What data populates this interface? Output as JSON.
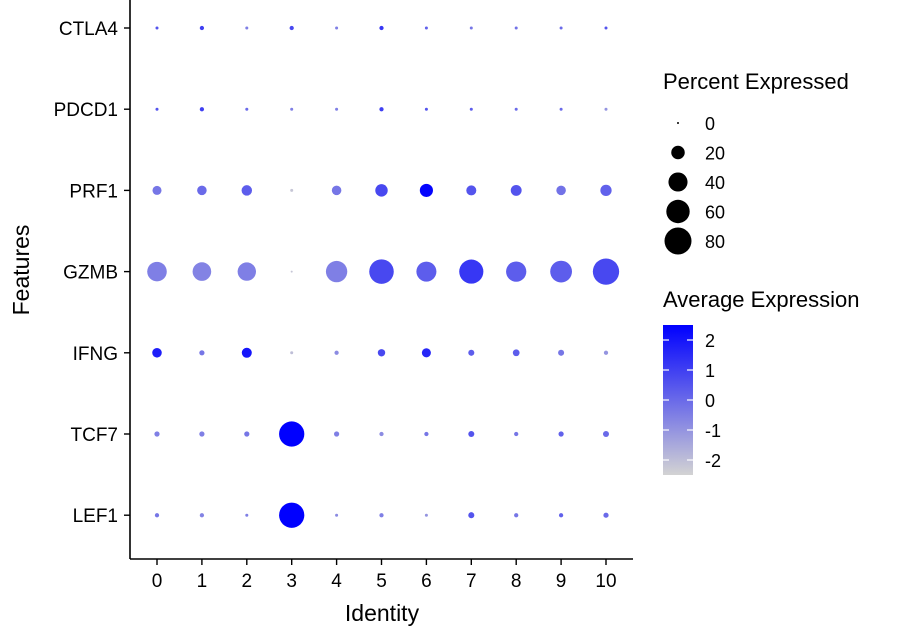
{
  "chart_data": {
    "type": "dot",
    "xlabel": "Identity",
    "ylabel": "Features",
    "categories": [
      "0",
      "1",
      "2",
      "3",
      "4",
      "5",
      "6",
      "7",
      "8",
      "9",
      "10"
    ],
    "features": [
      "CTLA4",
      "PDCD1",
      "PRF1",
      "GZMB",
      "IFNG",
      "TCF7",
      "LEF1"
    ],
    "size_legend": {
      "title": "Percent Expressed",
      "values": [
        0,
        20,
        40,
        60,
        80
      ]
    },
    "color_legend": {
      "title": "Average Expression",
      "ticks": [
        2,
        1,
        0,
        -1,
        -2
      ],
      "range": [
        -2.5,
        2.5
      ],
      "low_color": "#d3d3d3",
      "high_color": "#0000ff"
    },
    "data": [
      {
        "feature": "CTLA4",
        "pct": [
          1,
          2,
          1,
          2,
          1,
          2,
          1,
          1,
          1,
          1,
          1
        ],
        "avg": [
          0.5,
          1.0,
          -0.5,
          0.8,
          -0.5,
          1.2,
          0.2,
          -0.3,
          -0.2,
          0.0,
          0.5
        ]
      },
      {
        "feature": "PDCD1",
        "pct": [
          1,
          2,
          1,
          1,
          1,
          2,
          1,
          1,
          1,
          1,
          1
        ],
        "avg": [
          0.5,
          1.0,
          0.0,
          -0.5,
          -0.5,
          1.0,
          0.5,
          0.3,
          0.0,
          0.0,
          -1.0
        ]
      },
      {
        "feature": "PRF1",
        "pct": [
          9,
          10,
          12,
          1,
          10,
          17,
          19,
          11,
          13,
          10,
          14
        ],
        "avg": [
          -0.3,
          0.0,
          0.3,
          -2.2,
          -0.3,
          0.8,
          2.4,
          0.5,
          0.5,
          -0.2,
          0.2
        ]
      },
      {
        "feature": "GZMB",
        "pct": [
          42,
          38,
          37,
          0,
          50,
          66,
          44,
          64,
          45,
          52,
          76
        ],
        "avg": [
          -0.5,
          -0.6,
          -0.5,
          -2.2,
          -0.5,
          0.8,
          0.3,
          1.2,
          0.3,
          0.3,
          0.8
        ]
      },
      {
        "feature": "IFNG",
        "pct": [
          10,
          3,
          11,
          1,
          2,
          6,
          9,
          4,
          5,
          4,
          2
        ],
        "avg": [
          1.8,
          -0.3,
          2.0,
          -2.0,
          -0.8,
          0.8,
          1.6,
          0.3,
          0.3,
          -0.3,
          -1.0
        ]
      },
      {
        "feature": "TCF7",
        "pct": [
          3,
          3,
          3,
          70,
          3,
          2,
          2,
          4,
          2,
          3,
          4
        ],
        "avg": [
          -0.5,
          -0.5,
          -0.3,
          2.5,
          -0.5,
          -0.8,
          -0.3,
          0.5,
          -0.3,
          0.2,
          0.0
        ]
      },
      {
        "feature": "LEF1",
        "pct": [
          2,
          2,
          1,
          70,
          1,
          2,
          1,
          4,
          2,
          2,
          3
        ],
        "avg": [
          -0.3,
          -0.6,
          -0.5,
          2.5,
          -0.8,
          -0.5,
          -1.0,
          0.5,
          -0.3,
          0.2,
          0.0
        ]
      }
    ]
  }
}
